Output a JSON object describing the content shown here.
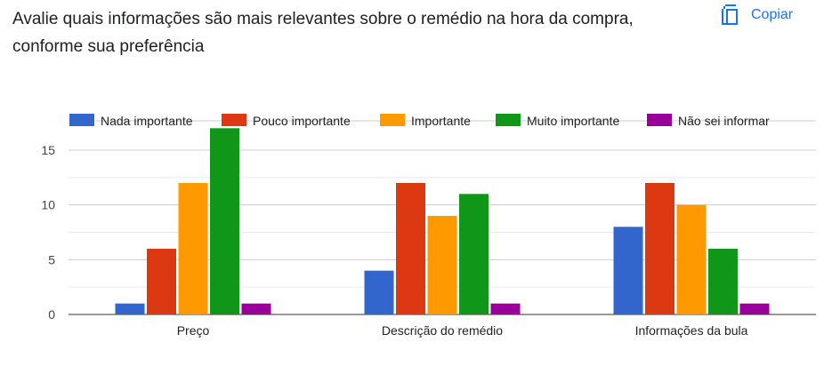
{
  "question": {
    "title": "Avalie quais informações são mais relevantes sobre o remédio na hora da compra, conforme sua preferência",
    "copy_label": "Copiar",
    "copy_icon": "copy-icon",
    "accent_color": "#1a73e8"
  },
  "chart_data": {
    "type": "bar",
    "title": "",
    "xlabel": "",
    "ylabel": "",
    "categories": [
      "Preço",
      "Descrição do remédio",
      "Informações da bula"
    ],
    "series": [
      {
        "name": "Nada importante",
        "color": "#3366cc",
        "values": [
          1,
          4,
          8
        ]
      },
      {
        "name": "Pouco importante",
        "color": "#dc3912",
        "values": [
          6,
          12,
          12
        ]
      },
      {
        "name": "Importante",
        "color": "#ff9900",
        "values": [
          12,
          9,
          10
        ]
      },
      {
        "name": "Muito importante",
        "color": "#109618",
        "values": [
          17,
          11,
          6
        ]
      },
      {
        "name": "Não sei informar",
        "color": "#990099",
        "values": [
          1,
          1,
          1
        ]
      }
    ],
    "ylim": [
      0,
      17
    ],
    "yticks": [
      0,
      5,
      10,
      15
    ],
    "grid": true,
    "legend_position": "top"
  }
}
